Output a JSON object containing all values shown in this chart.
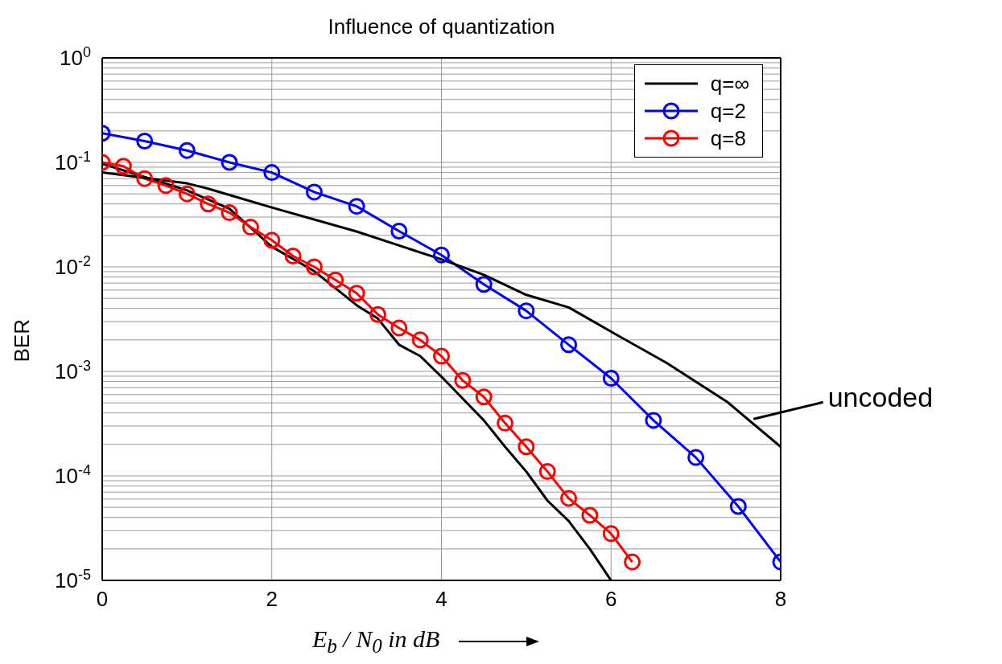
{
  "chart_data": {
    "type": "line",
    "title": "Influence of quantization",
    "xlabel": "E$_{b}$ / N$_{0}$  in dB",
    "ylabel": "BER",
    "log": "y",
    "grid": true,
    "legend": "top right",
    "xlim": [
      0,
      8
    ],
    "xticks": [
      0,
      2,
      4,
      6,
      8
    ],
    "ylim": [
      1e-05,
      1
    ],
    "yticks": [
      {
        "value": 1e-05,
        "label": "10$^{-5}$"
      },
      {
        "value": 2e-05,
        "label": null
      },
      {
        "value": 3e-05,
        "label": null
      },
      {
        "value": 4e-05,
        "label": null
      },
      {
        "value": 5e-05,
        "label": null
      },
      {
        "value": 6e-05,
        "label": null
      },
      {
        "value": 7e-05,
        "label": null
      },
      {
        "value": 8e-05,
        "label": null
      },
      {
        "value": 9e-05,
        "label": null
      },
      {
        "value": 0.0001,
        "label": "10$^{-4}$"
      },
      {
        "value": 0.0002,
        "label": null
      },
      {
        "value": 0.0003,
        "label": null
      },
      {
        "value": 0.0004,
        "label": null
      },
      {
        "value": 0.0005,
        "label": null
      },
      {
        "value": 0.0006,
        "label": null
      },
      {
        "value": 0.0007,
        "label": null
      },
      {
        "value": 0.0008,
        "label": null
      },
      {
        "value": 0.0009,
        "label": null
      },
      {
        "value": 0.001,
        "label": "10$^{-3}$"
      },
      {
        "value": 0.002,
        "label": null
      },
      {
        "value": 0.003,
        "label": null
      },
      {
        "value": 0.004,
        "label": null
      },
      {
        "value": 0.005,
        "label": null
      },
      {
        "value": 0.006,
        "label": null
      },
      {
        "value": 0.007,
        "label": null
      },
      {
        "value": 0.008,
        "label": null
      },
      {
        "value": 0.009,
        "label": null
      },
      {
        "value": 0.01,
        "label": "10$^{-2}$"
      },
      {
        "value": 0.02,
        "label": null
      },
      {
        "value": 0.03,
        "label": null
      },
      {
        "value": 0.04,
        "label": null
      },
      {
        "value": 0.05,
        "label": null
      },
      {
        "value": 0.06,
        "label": null
      },
      {
        "value": 0.07,
        "label": null
      },
      {
        "value": 0.08,
        "label": null
      },
      {
        "value": 0.09,
        "label": null
      },
      {
        "value": 0.1,
        "label": "10$^{-1}$"
      },
      {
        "value": 0.2,
        "label": null
      },
      {
        "value": 0.3,
        "label": null
      },
      {
        "value": 0.4,
        "label": null
      },
      {
        "value": 0.5,
        "label": null
      },
      {
        "value": 0.6,
        "label": null
      },
      {
        "value": 0.7,
        "label": null
      },
      {
        "value": 0.8,
        "label": null
      },
      {
        "value": 0.9,
        "label": null
      },
      {
        "value": 1,
        "label": "10$^{0}$"
      }
    ],
    "series": [
      {
        "name": "q=∞",
        "color": "#000000",
        "marker": "none",
        "x": [
          0,
          1,
          1.5,
          2,
          2.5,
          3,
          3.25,
          3.5,
          3.75,
          4,
          4.25,
          4.5,
          4.75,
          5,
          5.25,
          5.5,
          5.75,
          6
        ],
        "values": [
          0.097,
          0.054,
          0.036,
          0.0156,
          0.0091,
          0.0043,
          0.0032,
          0.0018,
          0.0014,
          0.00089,
          0.00055,
          0.00034,
          0.00019,
          0.00011,
          5.8e-05,
          3.7e-05,
          2e-05,
          1e-05
        ]
      },
      {
        "name": "q=2",
        "color": "#0000ff",
        "marker": "circle",
        "x": [
          0,
          0.5,
          1,
          1.5,
          2,
          2.5,
          3,
          3.5,
          4,
          4.5,
          5,
          5.5,
          6,
          6.5,
          7,
          7.5,
          8
        ],
        "values": [
          0.19,
          0.16,
          0.13,
          0.1,
          0.08,
          0.052,
          0.038,
          0.022,
          0.013,
          0.0068,
          0.0038,
          0.0018,
          0.00086,
          0.00034,
          0.00015,
          5.1e-05,
          1.5e-05
        ]
      },
      {
        "name": "q=8",
        "color": "#ff0000",
        "marker": "circle",
        "x": [
          0,
          0.25,
          0.5,
          0.75,
          1,
          1.25,
          1.5,
          1.75,
          2,
          2.25,
          2.5,
          2.75,
          3,
          3.25,
          3.5,
          3.75,
          4,
          4.25,
          4.5,
          4.75,
          5,
          5.25,
          5.5,
          5.75,
          6,
          6.25
        ],
        "values": [
          0.1,
          0.092,
          0.07,
          0.06,
          0.05,
          0.04,
          0.033,
          0.024,
          0.018,
          0.0127,
          0.01,
          0.0075,
          0.0056,
          0.0035,
          0.0026,
          0.002,
          0.0014,
          0.00082,
          0.00057,
          0.00032,
          0.00019,
          0.00011,
          6.1e-05,
          4.2e-05,
          2.8e-05,
          1.5e-05
        ]
      },
      {
        "color": "#000000",
        "marker": "none",
        "x": [
          0,
          1,
          1.25,
          2,
          3,
          4,
          4.5,
          5,
          5.5,
          6,
          6.66,
          7.37,
          8
        ],
        "values": [
          0.08,
          0.063,
          0.056,
          0.037,
          0.0218,
          0.0118,
          0.0084,
          0.0054,
          0.0041,
          0.0024,
          0.0012,
          0.00051,
          0.00019
        ]
      }
    ],
    "annotations": [
      {
        "text": "uncoded",
        "x": 7.68,
        "y": 0.00035
      }
    ]
  }
}
